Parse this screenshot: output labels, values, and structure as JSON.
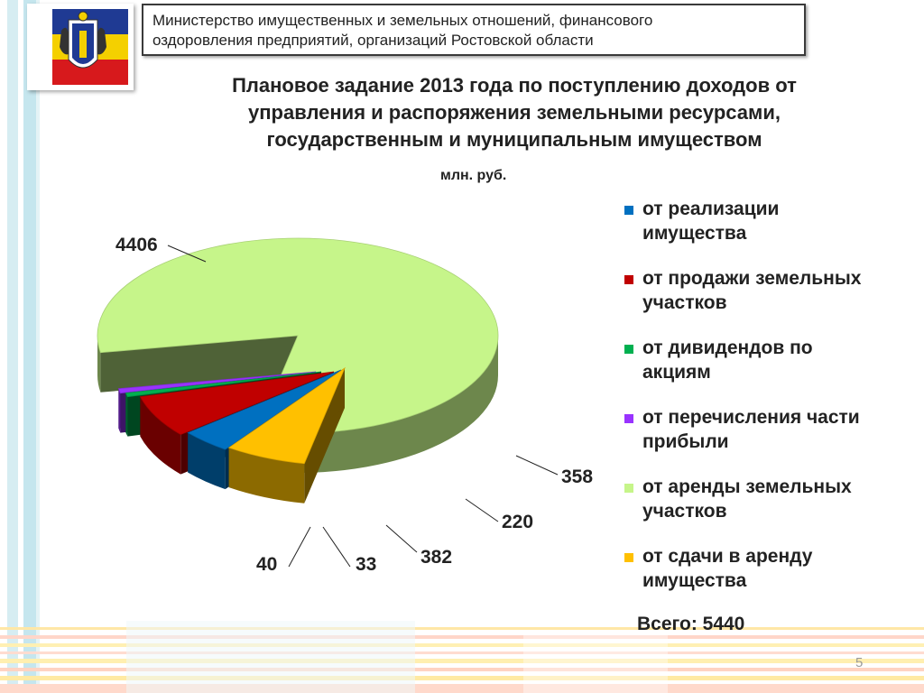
{
  "header": {
    "line1": "Министерство имущественных и земельных отношений, финансового",
    "line2": "оздоровления предприятий, организаций Ростовской области"
  },
  "title": {
    "line1": "Плановое задание 2013 года по поступлению доходов от",
    "line2": "управления и распоряжения земельными ресурсами,",
    "line3": "государственным и муниципальным имуществом"
  },
  "unit_label": "млн. руб.",
  "total_label": "Всего: 5440",
  "page_number": "5",
  "colors": {
    "flag_blue": "#1f3a93",
    "flag_yellow": "#f4d000",
    "flag_red": "#d7191c",
    "stripe_blue": "#c5e6ee"
  },
  "chart_data": {
    "type": "pie",
    "style": "3d-exploded",
    "legend_position": "right",
    "total": 5440,
    "slices": [
      {
        "label": "от аренды земельных участков",
        "value": 4406,
        "color": "#c6f58a"
      },
      {
        "label": "от сдачи в аренду имущества",
        "value": 358,
        "color": "#ffc000"
      },
      {
        "label": "от реализации имущества",
        "value": 220,
        "color": "#0070c0"
      },
      {
        "label": "от продажи земельных участков",
        "value": 382,
        "color": "#c00000"
      },
      {
        "label": "от дивидендов по акциям",
        "value": 33,
        "color": "#00b050"
      },
      {
        "label": "от перечисления части прибыли",
        "value": 40,
        "color": "#9933ff"
      }
    ],
    "legend_order": [
      {
        "label_line1": "от реализации",
        "label_line2": "имущества",
        "color": "#0070c0"
      },
      {
        "label_line1": "от продажи земельных",
        "label_line2": "участков",
        "color": "#c00000"
      },
      {
        "label_line1": "от дивидендов по",
        "label_line2": "акциям",
        "color": "#00b050"
      },
      {
        "label_line1": "от перечисления части",
        "label_line2": "прибыли",
        "color": "#9933ff"
      },
      {
        "label_line1": "от аренды земельных",
        "label_line2": "участков",
        "color": "#c6f58a"
      },
      {
        "label_line1": "от сдачи в аренду",
        "label_line2": "имущества",
        "color": "#ffc000"
      }
    ]
  }
}
